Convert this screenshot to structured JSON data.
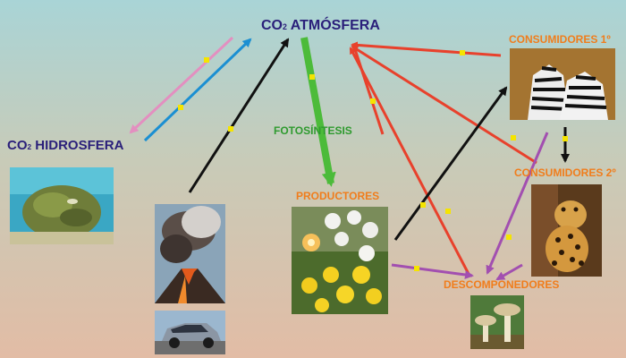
{
  "nodes": {
    "atmosphere": {
      "co2": "CO",
      "sub": "2",
      "label": " ATMÓSFERA"
    },
    "hydrosphere": {
      "co2": "CO",
      "sub": "2",
      "label": " HIDROSFERA"
    },
    "photosynthesis": "FOTOSÍNTESIS",
    "producers": "PRODUCTORES",
    "consumers1": "CONSUMIDORES 1º",
    "consumers2": "CONSUMIDORES 2º",
    "decomposers": "DESCOMPONEDORES"
  },
  "images": {
    "reef": "coral-reef-photo",
    "volcano": "volcano-eruption-photo",
    "car": "car-photo",
    "flowers": "flowers-photo",
    "zebras": "zebras-photo",
    "jaguar": "jaguar-photo",
    "mushrooms": "mushrooms-photo"
  },
  "colors": {
    "atmosphere_text": "#2a1f7a",
    "orange_text": "#f07d1c",
    "photosynthesis": "#4cbb3a",
    "respiration": "#e8412c",
    "emission": "#111111",
    "decomposition": "#a24fb0",
    "hydro_out": "#1b8fd2",
    "hydro_in": "#e38fc0",
    "marker": "#f5e400"
  }
}
